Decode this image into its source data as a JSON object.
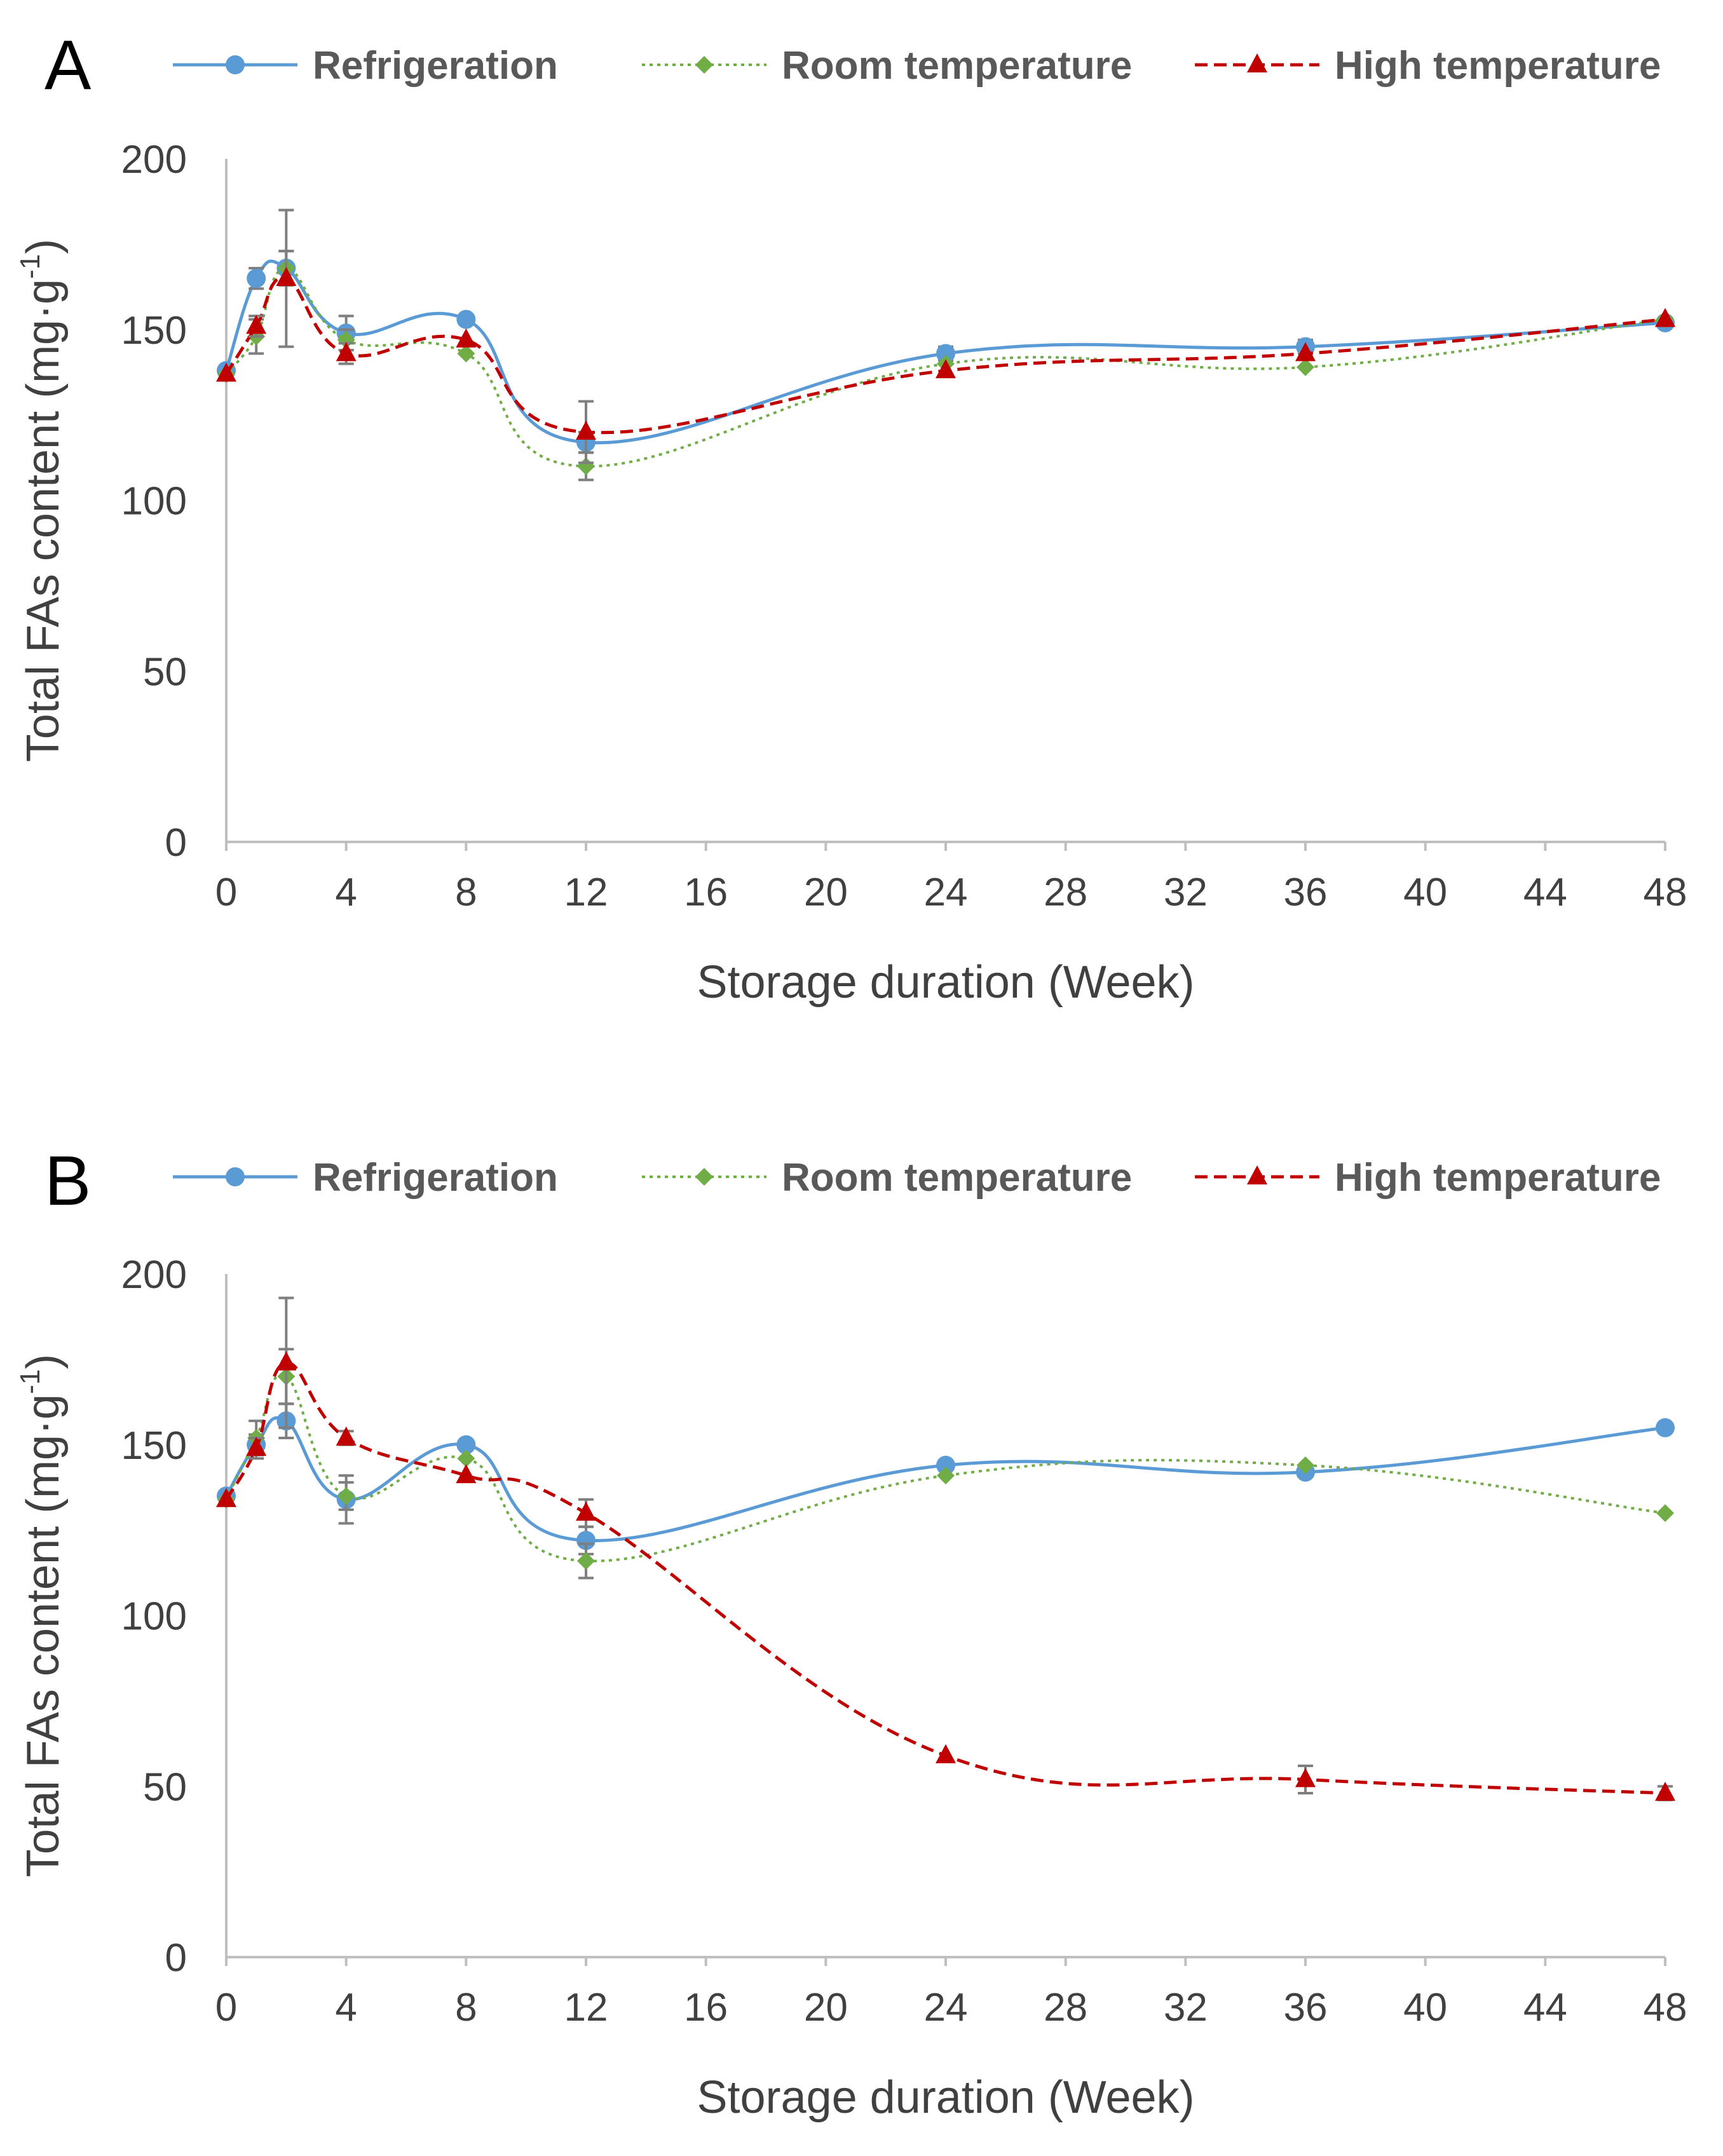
{
  "chart_data": [
    {
      "panel": "A",
      "type": "line",
      "xlabel": "Storage duration (Week)",
      "ylabel_main": "Total FAs content (mg·g",
      "ylabel_sup": "-1",
      "ylabel_close": ")",
      "ylim": [
        0,
        200
      ],
      "yticks": [
        0,
        50,
        100,
        150,
        200
      ],
      "xlim": [
        0,
        48
      ],
      "xticks": [
        0,
        4,
        8,
        12,
        16,
        20,
        24,
        28,
        32,
        36,
        40,
        44,
        48
      ],
      "grid": false,
      "legend_position": "top",
      "x": [
        0,
        1,
        2,
        4,
        8,
        12,
        24,
        36,
        48
      ],
      "series": [
        {
          "name": "Refrigeration",
          "color": "#5b9bd5",
          "marker": "circle",
          "dash": "solid",
          "values": [
            138,
            165,
            168,
            149,
            153,
            117,
            143,
            145,
            152
          ],
          "errors": [
            0,
            3,
            5,
            5,
            0,
            3,
            2,
            2,
            0
          ]
        },
        {
          "name": "Room temperature",
          "color": "#70ad47",
          "marker": "diamond",
          "dash": "dotted",
          "values": [
            137,
            148,
            168,
            147,
            143,
            110,
            140,
            139,
            153
          ],
          "errors": [
            0,
            5,
            5,
            3,
            0,
            4,
            0,
            0,
            0
          ]
        },
        {
          "name": "High temperature",
          "color": "#c00000",
          "marker": "triangle",
          "dash": "dashed",
          "values": [
            137,
            151,
            165,
            143,
            147,
            120,
            138,
            143,
            153
          ],
          "errors": [
            0,
            3,
            20,
            3,
            0,
            9,
            0,
            0,
            0
          ]
        }
      ]
    },
    {
      "panel": "B",
      "type": "line",
      "xlabel": "Storage duration (Week)",
      "ylabel_main": "Total FAs content (mg·g",
      "ylabel_sup": "-1",
      "ylabel_close": ")",
      "ylim": [
        0,
        200
      ],
      "yticks": [
        0,
        50,
        100,
        150,
        200
      ],
      "xlim": [
        0,
        48
      ],
      "xticks": [
        0,
        4,
        8,
        12,
        16,
        20,
        24,
        28,
        32,
        36,
        40,
        44,
        48
      ],
      "grid": false,
      "legend_position": "top",
      "x": [
        0,
        1,
        2,
        4,
        8,
        12,
        24,
        36,
        48
      ],
      "series": [
        {
          "name": "Refrigeration",
          "color": "#5b9bd5",
          "marker": "circle",
          "dash": "solid",
          "values": [
            135,
            150,
            157,
            134,
            150,
            122,
            144,
            142,
            155
          ],
          "errors": [
            0,
            3,
            5,
            7,
            0,
            4,
            0,
            0,
            0
          ]
        },
        {
          "name": "Room temperature",
          "color": "#70ad47",
          "marker": "diamond",
          "dash": "dotted",
          "values": [
            134,
            152,
            170,
            135,
            146,
            116,
            141,
            144,
            130
          ],
          "errors": [
            0,
            5,
            8,
            4,
            0,
            5,
            0,
            0,
            0
          ]
        },
        {
          "name": "High temperature",
          "color": "#c00000",
          "marker": "triangle",
          "dash": "dashed",
          "values": [
            134,
            149,
            174,
            152,
            141,
            130,
            59,
            52,
            48
          ],
          "errors": [
            0,
            3,
            19,
            2,
            0,
            4,
            0,
            4,
            2
          ]
        }
      ]
    }
  ]
}
